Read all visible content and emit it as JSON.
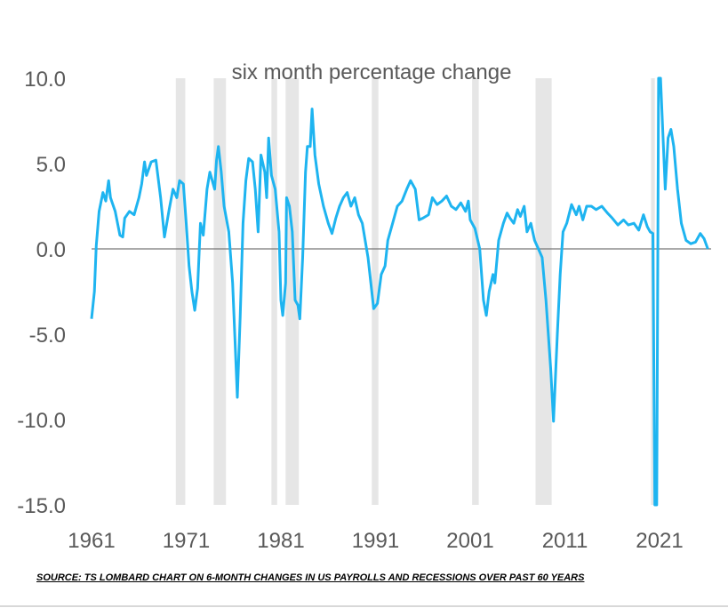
{
  "chart_data": {
    "type": "line",
    "title": "six month percentage change",
    "xlabel": "",
    "ylabel": "",
    "ylim": [
      -15,
      10
    ],
    "xlim": [
      1961,
      2026
    ],
    "grid": false,
    "yticks": [
      "10.0",
      "5.0",
      "0.0",
      "-5.0",
      "-10.0",
      "-15.0"
    ],
    "xticks": [
      "1961",
      "1971",
      "1981",
      "1991",
      "2001",
      "2011",
      "2021"
    ],
    "line_color": "#1EB4F0",
    "recession_color": "#E6E6E6",
    "recessions": [
      [
        1969.9,
        1970.9
      ],
      [
        1973.9,
        1975.2
      ],
      [
        1980.0,
        1980.6
      ],
      [
        1981.5,
        1982.9
      ],
      [
        1990.6,
        1991.3
      ],
      [
        2001.2,
        2001.9
      ],
      [
        2007.9,
        2009.6
      ],
      [
        2020.1,
        2020.5
      ]
    ],
    "series": [
      {
        "x": [
          1961.0,
          1961.3,
          1961.5,
          1961.8,
          1962.2,
          1962.5,
          1962.8,
          1963.0,
          1963.5,
          1964.0,
          1964.3,
          1964.5,
          1965.0,
          1965.5,
          1966.0,
          1966.3,
          1966.6,
          1966.8,
          1967.3,
          1967.8,
          1968.3,
          1968.7,
          1969.2,
          1969.6,
          1970.0,
          1970.3,
          1970.7,
          1971.0,
          1971.3,
          1971.6,
          1971.9,
          1972.2,
          1972.5,
          1972.8,
          1973.2,
          1973.5,
          1974.0,
          1974.2,
          1974.4,
          1974.7,
          1975.0,
          1975.5,
          1975.9,
          1976.2,
          1976.4,
          1976.7,
          1977.0,
          1977.3,
          1977.6,
          1978.0,
          1978.3,
          1978.6,
          1978.9,
          1979.3,
          1979.5,
          1979.7,
          1980.0,
          1980.4,
          1980.8,
          1981.0,
          1981.2,
          1981.5,
          1981.6,
          1981.9,
          1982.2,
          1982.5,
          1982.8,
          1983.0,
          1983.3,
          1983.6,
          1983.8,
          1984.1,
          1984.3,
          1984.6,
          1985.0,
          1985.5,
          1986.0,
          1986.4,
          1986.8,
          1987.2,
          1987.6,
          1988.0,
          1988.4,
          1988.8,
          1989.2,
          1989.6,
          1989.9,
          1990.2,
          1990.5,
          1990.8,
          1991.2,
          1991.6,
          1992.0,
          1992.3,
          1992.8,
          1993.3,
          1993.8,
          1994.3,
          1994.7,
          1995.2,
          1995.6,
          1996.0,
          1996.6,
          1997.0,
          1997.5,
          1998.0,
          1998.5,
          1999.0,
          1999.5,
          2000.0,
          2000.5,
          2000.8,
          2001.0,
          2001.5,
          2002.0,
          2002.4,
          2002.7,
          2003.0,
          2003.4,
          2003.6,
          2004.0,
          2004.5,
          2004.9,
          2005.2,
          2005.6,
          2006.0,
          2006.3,
          2006.7,
          2007.0,
          2007.4,
          2007.8,
          2008.2,
          2008.6,
          2009.0,
          2009.5,
          2009.8,
          2010.2,
          2010.5,
          2010.8,
          2011.2,
          2011.7,
          2012.2,
          2012.5,
          2012.9,
          2013.3,
          2013.8,
          2014.3,
          2014.9,
          2015.5,
          2016.0,
          2016.6,
          2017.2,
          2017.7,
          2018.3,
          2018.8,
          2019.3,
          2019.7,
          2020.0,
          2020.3,
          2020.5,
          2020.7,
          2020.9,
          2021.1,
          2021.6,
          2021.9,
          2022.2,
          2022.5,
          2022.9,
          2023.3,
          2023.8,
          2024.3,
          2024.8,
          2025.3,
          2025.7,
          2026.1
        ],
        "y": [
          -4.1,
          -2.5,
          0.2,
          2.2,
          3.3,
          2.8,
          4.0,
          3.0,
          2.2,
          0.8,
          0.7,
          1.8,
          2.2,
          2.0,
          3.0,
          3.8,
          5.1,
          4.3,
          5.1,
          5.2,
          3.0,
          0.7,
          2.3,
          3.5,
          3.0,
          4.0,
          3.8,
          1.5,
          -1.0,
          -2.5,
          -3.6,
          -2.3,
          1.5,
          0.8,
          3.5,
          4.5,
          3.5,
          5.2,
          6.0,
          4.5,
          2.5,
          1.0,
          -2.0,
          -6.0,
          -8.7,
          -4.0,
          1.5,
          4.0,
          5.3,
          5.1,
          3.5,
          1.0,
          5.5,
          4.5,
          3.0,
          6.5,
          4.3,
          3.5,
          1.0,
          -3.0,
          -3.9,
          -2.0,
          3.0,
          2.5,
          1.0,
          -3.0,
          -3.3,
          -4.1,
          -0.5,
          4.5,
          6.0,
          6.0,
          8.2,
          5.5,
          3.8,
          2.5,
          1.5,
          0.9,
          1.8,
          2.5,
          3.0,
          3.3,
          2.5,
          3.0,
          2.0,
          1.5,
          0.5,
          -0.5,
          -2.0,
          -3.5,
          -3.2,
          -1.5,
          -1.0,
          0.5,
          1.5,
          2.5,
          2.8,
          3.5,
          4.0,
          3.5,
          1.7,
          1.8,
          2.0,
          3.0,
          2.6,
          2.8,
          3.1,
          2.5,
          2.3,
          2.7,
          2.2,
          2.8,
          1.7,
          1.2,
          0.0,
          -3.0,
          -3.9,
          -2.5,
          -1.5,
          -2.0,
          0.5,
          1.5,
          2.1,
          1.8,
          1.5,
          2.3,
          1.9,
          2.5,
          1.0,
          1.5,
          0.5,
          0.0,
          -0.5,
          -3.0,
          -7.0,
          -10.1,
          -5.0,
          -1.5,
          1.0,
          1.5,
          2.6,
          2.0,
          2.5,
          1.7,
          2.5,
          2.5,
          2.3,
          2.5,
          2.1,
          1.8,
          1.4,
          1.7,
          1.4,
          1.5,
          1.1,
          2.0,
          1.3,
          1.0,
          0.9,
          -15.0,
          -15.0,
          10.0,
          10.0,
          3.5,
          6.5,
          7.0,
          6.0,
          3.5,
          1.5,
          0.5,
          0.3,
          0.4,
          0.9,
          0.6,
          0.0
        ]
      }
    ]
  },
  "caption": "SOURCE: TS LOMBARD CHART ON 6-MONTH CHANGES IN US PAYROLLS AND RECESSIONS OVER PAST 60 YEARS"
}
